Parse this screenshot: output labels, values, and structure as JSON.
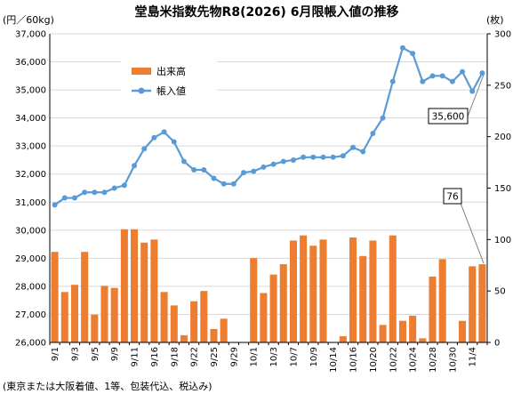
{
  "chart_data": {
    "type": "bar+line",
    "title": "堂島米指数先物R8(2026) 6月限帳入値の推移",
    "left_unit": "(円／60kg)",
    "right_unit": "(枚)",
    "footnote": "(東京または大阪着値、1等、包装代込、税込み)",
    "legend": {
      "position": "top-left",
      "bar_label": "出来高",
      "line_label": "帳入値"
    },
    "left_axis": {
      "min": 26000,
      "max": 37000,
      "step": 1000,
      "ticks": [
        "26,000",
        "27,000",
        "28,000",
        "29,000",
        "30,000",
        "31,000",
        "32,000",
        "33,000",
        "34,000",
        "35,000",
        "36,000",
        "37,000"
      ]
    },
    "right_axis": {
      "min": 0,
      "max": 300,
      "step": 50,
      "ticks": [
        "0",
        "50",
        "100",
        "150",
        "200",
        "250",
        "300"
      ]
    },
    "x_ticks": [
      {
        "i": 0,
        "label": "9/1"
      },
      {
        "i": 2,
        "label": "9/3"
      },
      {
        "i": 4,
        "label": "9/5"
      },
      {
        "i": 6,
        "label": "9/9"
      },
      {
        "i": 8,
        "label": "9/11"
      },
      {
        "i": 10,
        "label": "9/16"
      },
      {
        "i": 12,
        "label": "9/18"
      },
      {
        "i": 14,
        "label": "9/22"
      },
      {
        "i": 16,
        "label": "9/25"
      },
      {
        "i": 18,
        "label": "9/29"
      },
      {
        "i": 20,
        "label": "10/1"
      },
      {
        "i": 22,
        "label": "10/3"
      },
      {
        "i": 24,
        "label": "10/7"
      },
      {
        "i": 26,
        "label": "10/9"
      },
      {
        "i": 28,
        "label": "10/14"
      },
      {
        "i": 30,
        "label": "10/16"
      },
      {
        "i": 32,
        "label": "10/20"
      },
      {
        "i": 34,
        "label": "10/22"
      },
      {
        "i": 36,
        "label": "10/24"
      },
      {
        "i": 38,
        "label": "10/28"
      },
      {
        "i": 40,
        "label": "10/30"
      },
      {
        "i": 42,
        "label": "11/4"
      }
    ],
    "volume": [
      88,
      49,
      56,
      88,
      27,
      55,
      53,
      110,
      110,
      97,
      100,
      49,
      36,
      7,
      40,
      50,
      13,
      23,
      0,
      0,
      82,
      48,
      66,
      76,
      99,
      104,
      94,
      100,
      0,
      6,
      102,
      84,
      99,
      17,
      104,
      21,
      26,
      4,
      64,
      81,
      0,
      21,
      74,
      76
    ],
    "price": [
      30900,
      31150,
      31150,
      31350,
      31350,
      31350,
      31500,
      31600,
      32300,
      32900,
      33300,
      33500,
      33150,
      32450,
      32150,
      32150,
      31850,
      31650,
      31650,
      32050,
      32100,
      32250,
      32350,
      32450,
      32500,
      32600,
      32600,
      32600,
      32600,
      32650,
      32950,
      32800,
      33450,
      34000,
      35300,
      36500,
      36300,
      35300,
      35500,
      35500,
      35300,
      35650,
      34950,
      35600
    ],
    "callouts": {
      "price_last": "35,600",
      "volume_last": "76"
    },
    "colors": {
      "bar": "#ed7d31",
      "line": "#5b9bd5",
      "grid": "#d9d9d9",
      "axis": "#000000"
    }
  }
}
